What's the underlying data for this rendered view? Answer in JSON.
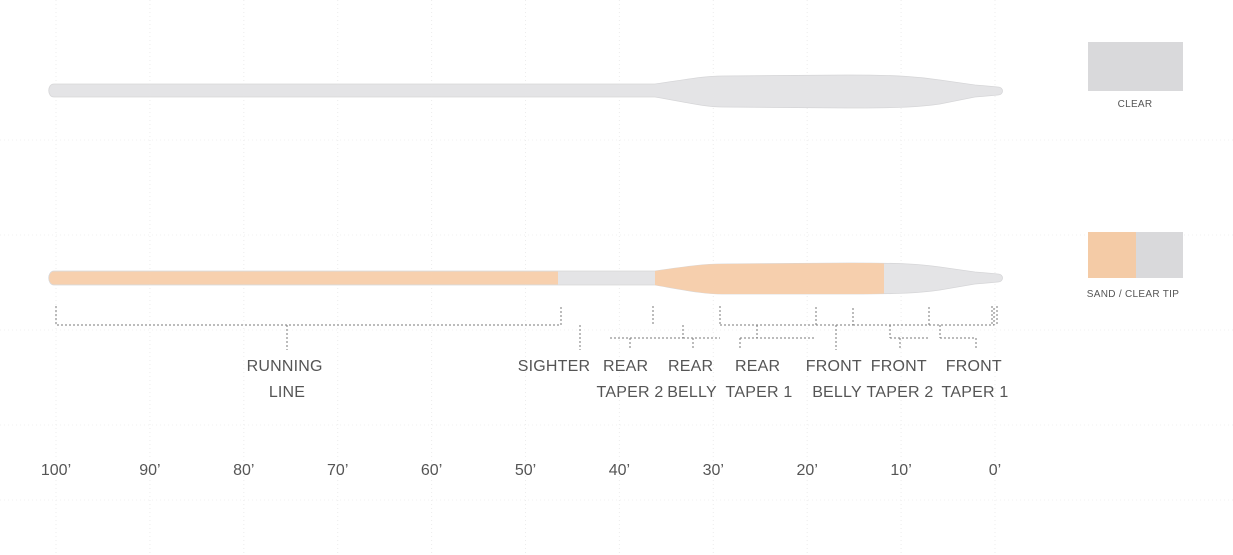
{
  "colors": {
    "clear": "#e3e3e5",
    "clear_stroke": "#d8d8da",
    "sand": "#f6ceac",
    "grid": "#d9d9d9",
    "bracket": "#777777",
    "text": "#555555"
  },
  "legend": [
    {
      "label": "CLEAR",
      "fills": [
        "#d8d8da"
      ]
    },
    {
      "label": "SAND / CLEAR TIP",
      "fills": [
        "#f4cba6",
        "#d8d8da"
      ]
    }
  ],
  "lines": [
    {
      "name": "clear-line",
      "colorway": "CLEAR"
    },
    {
      "name": "sand-clear-tip-line",
      "colorway": "SAND / CLEAR TIP"
    }
  ],
  "sections": [
    {
      "label_lines": [
        "RUNNING",
        "LINE"
      ]
    },
    {
      "label_lines": [
        "SIGHTER"
      ]
    },
    {
      "label_lines": [
        "REAR",
        "TAPER 2"
      ]
    },
    {
      "label_lines": [
        "REAR",
        "BELLY"
      ]
    },
    {
      "label_lines": [
        "REAR",
        "TAPER 1"
      ]
    },
    {
      "label_lines": [
        "FRONT",
        "BELLY"
      ]
    },
    {
      "label_lines": [
        "FRONT",
        "TAPER 2"
      ]
    },
    {
      "label_lines": [
        "FRONT",
        "TAPER 1"
      ]
    }
  ],
  "axis": {
    "unit": "feet",
    "ticks": [
      {
        "value": 100,
        "label": "100’"
      },
      {
        "value": 90,
        "label": "90’"
      },
      {
        "value": 80,
        "label": "80’"
      },
      {
        "value": 70,
        "label": "70’"
      },
      {
        "value": 60,
        "label": "60’"
      },
      {
        "value": 50,
        "label": "50’"
      },
      {
        "value": 40,
        "label": "40’"
      },
      {
        "value": 30,
        "label": "30’"
      },
      {
        "value": 20,
        "label": "20’"
      },
      {
        "value": 10,
        "label": "10’"
      },
      {
        "value": 0,
        "label": "0’"
      }
    ]
  }
}
